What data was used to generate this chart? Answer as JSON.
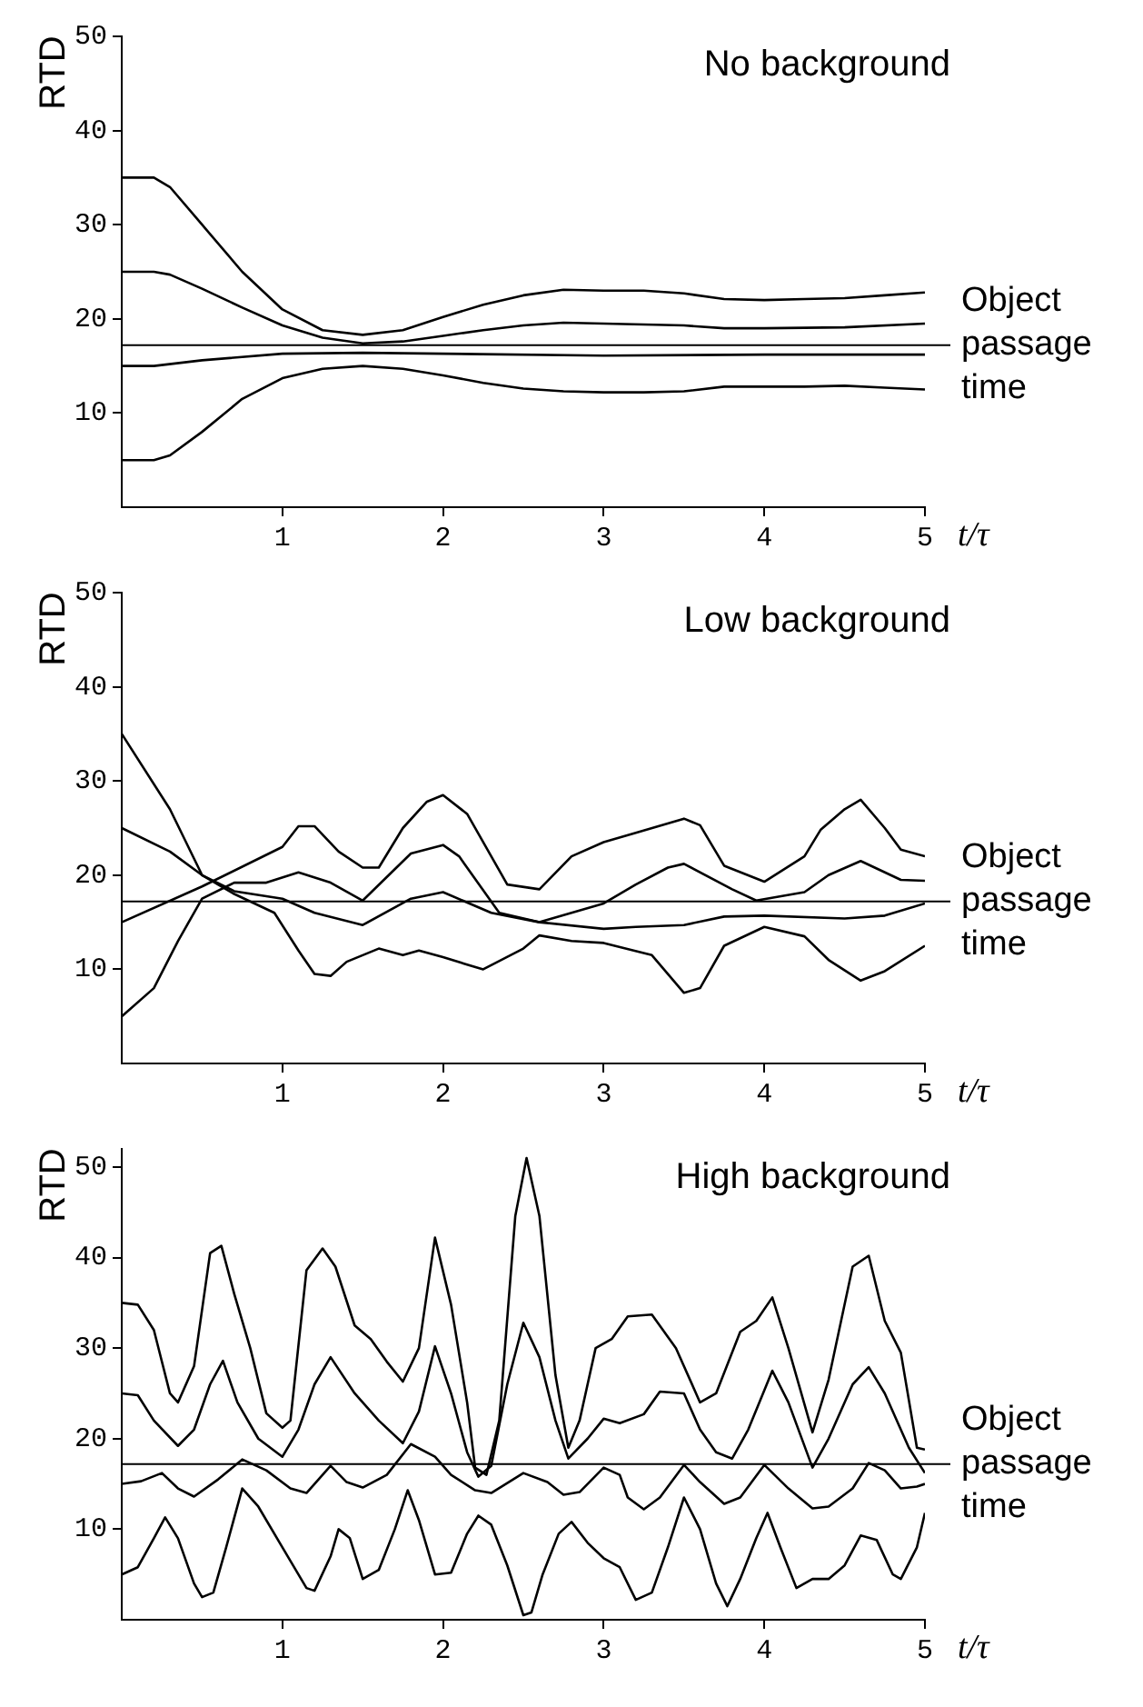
{
  "chart_data": [
    {
      "type": "line",
      "title": "No background",
      "xlabel": "t/τ",
      "ylabel": "RTD",
      "xlim": [
        0,
        5
      ],
      "xticks": [
        1,
        2,
        3,
        4,
        5
      ],
      "ylim": [
        0,
        50
      ],
      "yticks": [
        10,
        20,
        30,
        40,
        50
      ],
      "marker": "none",
      "line_style": "solid",
      "ref_lines": [
        {
          "axis": "y",
          "value": 17.2,
          "label": "Object passage time",
          "color": "#000000"
        }
      ],
      "series": [
        {
          "color": "#000000",
          "x": [
            0,
            0.2,
            0.3,
            0.5,
            0.75,
            1.0,
            1.25,
            1.5,
            1.75,
            2.0,
            2.25,
            2.5,
            2.75,
            3,
            3.25,
            3.5,
            3.75,
            4,
            4.25,
            4.5,
            4.75,
            5
          ],
          "values": [
            35,
            35,
            34,
            30,
            25,
            21,
            18.8,
            18.3,
            18.8,
            20.2,
            21.5,
            22.5,
            23.1,
            23,
            23,
            22.7,
            22.1,
            22,
            22.1,
            22.2,
            22.5,
            22.8
          ]
        },
        {
          "color": "#000000",
          "x": [
            0,
            0.2,
            0.3,
            0.5,
            0.75,
            1.0,
            1.25,
            1.5,
            1.75,
            2,
            2.25,
            2.5,
            2.75,
            3,
            3.5,
            3.75,
            4,
            4.5,
            5
          ],
          "values": [
            25,
            25,
            24.7,
            23.2,
            21.2,
            19.3,
            18,
            17.4,
            17.6,
            18.2,
            18.8,
            19.3,
            19.6,
            19.5,
            19.3,
            19,
            19,
            19.1,
            19.5
          ]
        },
        {
          "color": "#000000",
          "x": [
            0,
            0.2,
            0.5,
            1,
            1.5,
            2,
            3,
            4,
            5
          ],
          "values": [
            15,
            15,
            15.6,
            16.3,
            16.4,
            16.3,
            16.1,
            16.2,
            16.2
          ]
        },
        {
          "color": "#000000",
          "x": [
            0,
            0.2,
            0.3,
            0.5,
            0.75,
            1,
            1.25,
            1.5,
            1.75,
            2,
            2.25,
            2.5,
            2.75,
            3,
            3.25,
            3.5,
            3.75,
            4,
            4.25,
            4.5,
            4.75,
            5
          ],
          "values": [
            5,
            5,
            5.5,
            8,
            11.5,
            13.7,
            14.7,
            15,
            14.7,
            14,
            13.2,
            12.6,
            12.3,
            12.2,
            12.2,
            12.3,
            12.8,
            12.8,
            12.8,
            12.9,
            12.7,
            12.5
          ]
        }
      ]
    },
    {
      "type": "line",
      "title": "Low background",
      "xlabel": "t/τ",
      "ylabel": "RTD",
      "xlim": [
        0,
        5
      ],
      "xticks": [
        1,
        2,
        3,
        4,
        5
      ],
      "ylim": [
        0,
        50
      ],
      "yticks": [
        10,
        20,
        30,
        40,
        50
      ],
      "marker": "none",
      "line_style": "solid",
      "ref_lines": [
        {
          "axis": "y",
          "value": 17.2,
          "label": "Object passage time",
          "color": "#000000"
        }
      ],
      "series": [
        {
          "color": "#000000",
          "x": [
            0,
            0.3,
            0.5,
            0.7,
            1.0,
            1.2,
            1.5,
            1.8,
            2,
            2.3,
            2.6,
            3,
            3.2,
            3.5,
            3.75,
            4,
            4.5,
            4.75,
            5
          ],
          "values": [
            35,
            27,
            20,
            18.3,
            17.5,
            16,
            14.7,
            17.5,
            18.2,
            16,
            15,
            14.3,
            14.5,
            14.7,
            15.6,
            15.7,
            15.4,
            15.7,
            17
          ]
        },
        {
          "color": "#000000",
          "x": [
            0,
            0.3,
            0.5,
            0.7,
            0.95,
            1.1,
            1.2,
            1.3,
            1.4,
            1.6,
            1.75,
            1.85,
            2,
            2.15,
            2.25,
            2.5,
            2.6,
            2.8,
            3,
            3.3,
            3.5,
            3.6,
            3.75,
            4,
            4.25,
            4.4,
            4.6,
            4.75,
            5
          ],
          "values": [
            25,
            22.5,
            20,
            18,
            16,
            12,
            9.5,
            9.3,
            10.8,
            12.2,
            11.5,
            12,
            11.3,
            10.5,
            10,
            12.2,
            13.6,
            13,
            12.8,
            11.5,
            7.5,
            8,
            12.5,
            14.5,
            13.5,
            11,
            8.8,
            9.8,
            12.5
          ]
        },
        {
          "color": "#000000",
          "x": [
            0,
            0.2,
            0.35,
            0.5,
            0.7,
            0.9,
            1.1,
            1.3,
            1.5,
            1.8,
            2,
            2.1,
            2.35,
            2.6,
            3,
            3.2,
            3.4,
            3.5,
            3.8,
            3.95,
            4.25,
            4.4,
            4.6,
            4.85,
            5
          ],
          "values": [
            5,
            8,
            13,
            17.5,
            19.2,
            19.2,
            20.3,
            19.2,
            17.3,
            22.3,
            23.2,
            22,
            16,
            15,
            17,
            19,
            20.8,
            21.2,
            18.5,
            17.3,
            18.2,
            20,
            21.5,
            19.5,
            19.4
          ]
        },
        {
          "color": "#000000",
          "x": [
            0,
            0.5,
            1,
            1.1,
            1.2,
            1.35,
            1.5,
            1.6,
            1.75,
            1.9,
            2,
            2.15,
            2.4,
            2.6,
            2.8,
            3,
            3.2,
            3.5,
            3.6,
            3.75,
            4,
            4.25,
            4.35,
            4.5,
            4.6,
            4.75,
            4.85,
            5
          ],
          "values": [
            15,
            18.8,
            23,
            25.2,
            25.2,
            22.5,
            20.8,
            20.8,
            25,
            27.8,
            28.5,
            26.5,
            19,
            18.5,
            22,
            23.5,
            24.5,
            26,
            25.3,
            21,
            19.3,
            22,
            24.8,
            27,
            28,
            25,
            22.7,
            22
          ]
        }
      ]
    },
    {
      "type": "line",
      "title": "High background",
      "xlabel": "t/τ",
      "ylabel": "RTD",
      "xlim": [
        0,
        5
      ],
      "xticks": [
        1,
        2,
        3,
        4,
        5
      ],
      "ylim": [
        0,
        52
      ],
      "yticks": [
        10,
        20,
        30,
        40,
        50
      ],
      "marker": "none",
      "line_style": "solid",
      "ref_lines": [
        {
          "axis": "y",
          "value": 17.2,
          "label": "Object passage time",
          "color": "#000000"
        }
      ],
      "series": [
        {
          "color": "#000000",
          "x": [
            0,
            0.1,
            0.2,
            0.3,
            0.35,
            0.45,
            0.55,
            0.62,
            0.7,
            0.8,
            0.9,
            1.0,
            1.05,
            1.15,
            1.25,
            1.33,
            1.45,
            1.55,
            1.65,
            1.75,
            1.85,
            1.95,
            2.05,
            2.15,
            2.2,
            2.27,
            2.35,
            2.45,
            2.52,
            2.6,
            2.7,
            2.78,
            2.85,
            2.95,
            3.05,
            3.15,
            3.3,
            3.45,
            3.6,
            3.7,
            3.85,
            3.95,
            4.05,
            4.15,
            4.3,
            4.4,
            4.55,
            4.65,
            4.75,
            4.85,
            4.95,
            5
          ],
          "values": [
            35,
            34.8,
            32,
            25,
            24,
            28,
            40.5,
            41.3,
            36,
            30,
            22.8,
            21.2,
            22,
            38.6,
            41,
            39,
            32.5,
            31,
            28.5,
            26.3,
            30,
            42.2,
            34.8,
            24,
            16.8,
            16,
            22,
            44.6,
            51,
            44.6,
            27,
            19,
            22,
            30,
            31,
            33.5,
            33.7,
            30,
            24,
            25,
            31.8,
            33,
            35.6,
            30,
            20.7,
            26.5,
            39,
            40.2,
            33,
            29.5,
            19,
            18.8
          ]
        },
        {
          "color": "#000000",
          "x": [
            0,
            0.1,
            0.2,
            0.35,
            0.45,
            0.55,
            0.63,
            0.72,
            0.85,
            1.0,
            1.1,
            1.2,
            1.3,
            1.45,
            1.6,
            1.75,
            1.85,
            1.95,
            2.05,
            2.15,
            2.22,
            2.3,
            2.4,
            2.5,
            2.6,
            2.7,
            2.78,
            2.9,
            3.0,
            3.1,
            3.25,
            3.35,
            3.5,
            3.6,
            3.7,
            3.8,
            3.9,
            4.05,
            4.15,
            4.3,
            4.4,
            4.55,
            4.65,
            4.75,
            4.9,
            5
          ],
          "values": [
            25,
            24.8,
            22,
            19.2,
            21,
            26,
            28.6,
            24,
            20,
            18,
            21,
            26,
            29,
            25,
            22,
            19.5,
            23,
            30.2,
            25,
            18.5,
            15.8,
            17,
            26,
            32.8,
            29,
            22,
            17.8,
            20,
            22.2,
            21.7,
            22.7,
            25.2,
            25,
            21,
            18.5,
            17.8,
            21,
            27.5,
            24,
            16.8,
            20,
            26,
            27.9,
            25,
            19,
            16.2
          ]
        },
        {
          "color": "#000000",
          "x": [
            0,
            0.12,
            0.25,
            0.35,
            0.45,
            0.6,
            0.75,
            0.9,
            1.05,
            1.15,
            1.3,
            1.4,
            1.5,
            1.65,
            1.8,
            1.95,
            2.05,
            2.2,
            2.3,
            2.5,
            2.65,
            2.75,
            2.85,
            3.0,
            3.1,
            3.15,
            3.25,
            3.35,
            3.5,
            3.6,
            3.75,
            3.85,
            4.0,
            4.15,
            4.3,
            4.4,
            4.55,
            4.65,
            4.75,
            4.85,
            4.95,
            5
          ],
          "values": [
            15,
            15.3,
            16.2,
            14.5,
            13.6,
            15.5,
            17.7,
            16.5,
            14.5,
            14,
            17,
            15.2,
            14.6,
            16,
            19.4,
            18,
            16,
            14.3,
            14,
            16.2,
            15.2,
            13.8,
            14.1,
            16.8,
            16,
            13.5,
            12.2,
            13.5,
            17.1,
            15.2,
            12.8,
            13.5,
            17.1,
            14.5,
            12.3,
            12.5,
            14.5,
            17.3,
            16.5,
            14.5,
            14.7,
            15
          ]
        },
        {
          "color": "#000000",
          "x": [
            0,
            0.1,
            0.2,
            0.27,
            0.35,
            0.45,
            0.5,
            0.57,
            0.65,
            0.75,
            0.85,
            1.0,
            1.15,
            1.2,
            1.3,
            1.35,
            1.42,
            1.5,
            1.6,
            1.7,
            1.78,
            1.85,
            1.95,
            2.05,
            2.15,
            2.22,
            2.3,
            2.4,
            2.5,
            2.55,
            2.62,
            2.72,
            2.8,
            2.9,
            3.0,
            3.1,
            3.2,
            3.3,
            3.4,
            3.5,
            3.6,
            3.7,
            3.77,
            3.85,
            3.95,
            4.02,
            4.1,
            4.2,
            4.3,
            4.4,
            4.5,
            4.6,
            4.7,
            4.8,
            4.85,
            4.95,
            5
          ],
          "values": [
            5,
            5.8,
            9,
            11.3,
            9,
            4,
            2.5,
            3,
            8,
            14.5,
            12.5,
            8,
            3.5,
            3.2,
            7,
            10,
            9,
            4.5,
            5.5,
            10,
            14.3,
            11,
            5,
            5.2,
            9.5,
            11.5,
            10.5,
            6,
            0.5,
            0.8,
            5,
            9.5,
            10.8,
            8.5,
            6.8,
            5.8,
            2.2,
            3,
            8,
            13.5,
            10,
            4,
            1.5,
            4.5,
            9,
            11.8,
            8,
            3.5,
            4.5,
            4.5,
            6,
            9.3,
            8.8,
            5,
            4.5,
            8,
            11.8
          ]
        }
      ]
    }
  ]
}
